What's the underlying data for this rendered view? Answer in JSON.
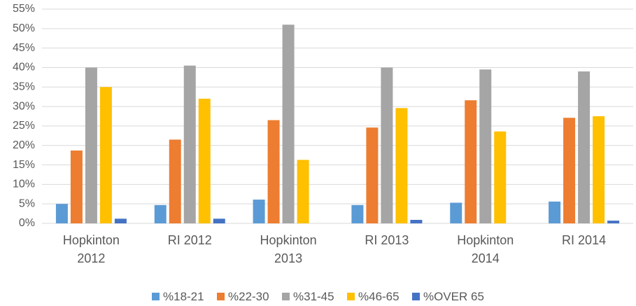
{
  "chart_data": {
    "type": "bar",
    "categories": [
      "Hopkinton 2012",
      "RI 2012",
      "Hopkinton 2013",
      "RI 2013",
      "Hopkinton 2014",
      "RI 2014"
    ],
    "series": [
      {
        "name": "%18-21",
        "color": "#5b9bd5",
        "values": [
          5.0,
          4.7,
          6.1,
          4.7,
          5.3,
          5.6
        ]
      },
      {
        "name": "%22-30",
        "color": "#ed7d31",
        "values": [
          18.7,
          21.5,
          26.5,
          24.6,
          31.6,
          27.1
        ]
      },
      {
        "name": "%31-45",
        "color": "#a5a5a5",
        "values": [
          40,
          40.5,
          51,
          40,
          39.5,
          39
        ]
      },
      {
        "name": "%46-65",
        "color": "#ffc000",
        "values": [
          35,
          32,
          16.3,
          29.6,
          23.6,
          27.5
        ]
      },
      {
        "name": "%OVER 65",
        "color": "#4472c4",
        "values": [
          1.2,
          1.2,
          0,
          0.9,
          0,
          0.7
        ]
      }
    ],
    "ylim": [
      0,
      55
    ],
    "yticks": [
      {
        "value": 0,
        "label": "0%"
      },
      {
        "value": 5,
        "label": "5%"
      },
      {
        "value": 10,
        "label": "10%"
      },
      {
        "value": 15,
        "label": "15%"
      },
      {
        "value": 20,
        "label": "20%"
      },
      {
        "value": 25,
        "label": "25%"
      },
      {
        "value": 30,
        "label": "30%"
      },
      {
        "value": 35,
        "label": "35%"
      },
      {
        "value": 40,
        "label": "40%"
      },
      {
        "value": 45,
        "label": "45%"
      },
      {
        "value": 50,
        "label": "50%"
      },
      {
        "value": 55,
        "label": "55%"
      }
    ],
    "grid": true,
    "legend": "bottom"
  }
}
